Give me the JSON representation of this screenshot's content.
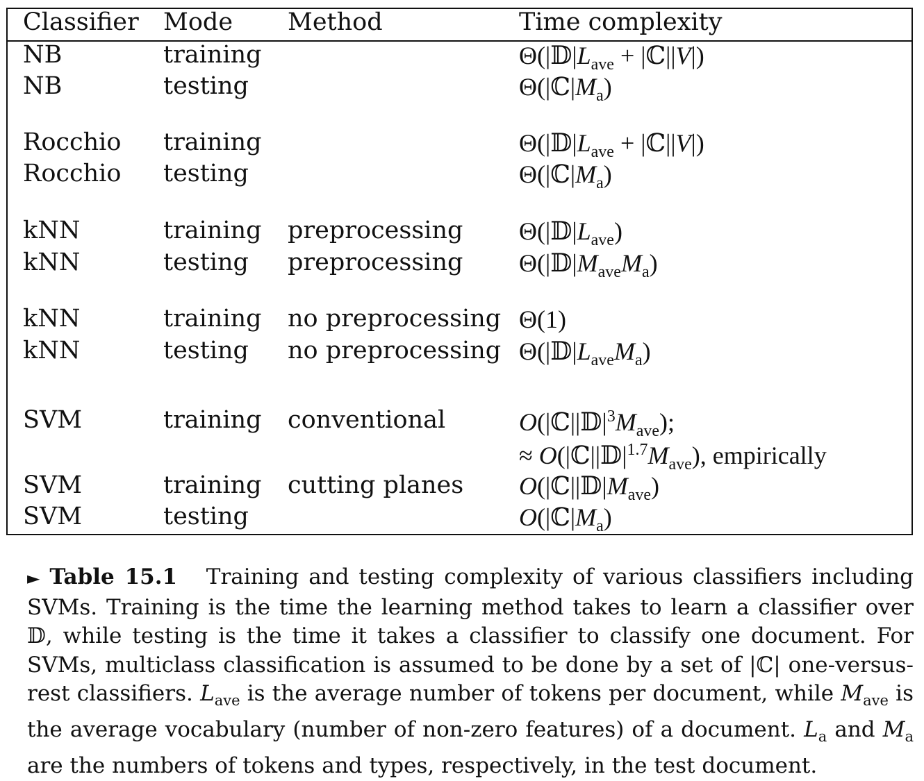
{
  "table": {
    "headers": [
      "Classifier",
      "Mode",
      "Method",
      "Time complexity"
    ],
    "rows": [
      {
        "classifier": "NB",
        "mode": "training",
        "method": "",
        "complexity": "Θ(|𝔻|L_ave + |ℂ||V|)"
      },
      {
        "classifier": "NB",
        "mode": "testing",
        "method": "",
        "complexity": "Θ(|ℂ|M_a)"
      },
      {
        "classifier": "Rocchio",
        "mode": "training",
        "method": "",
        "complexity": "Θ(|𝔻|L_ave + |ℂ||V|)"
      },
      {
        "classifier": "Rocchio",
        "mode": "testing",
        "method": "",
        "complexity": "Θ(|ℂ|M_a)"
      },
      {
        "classifier": "kNN",
        "mode": "training",
        "method": "preprocessing",
        "complexity": "Θ(|𝔻|L_ave)"
      },
      {
        "classifier": "kNN",
        "mode": "testing",
        "method": "preprocessing",
        "complexity": "Θ(|𝔻|M_ave M_a)"
      },
      {
        "classifier": "kNN",
        "mode": "training",
        "method": "no preprocessing",
        "complexity": "Θ(1)"
      },
      {
        "classifier": "kNN",
        "mode": "testing",
        "method": "no preprocessing",
        "complexity": "Θ(|𝔻|L_ave M_a)"
      },
      {
        "classifier": "SVM",
        "mode": "training",
        "method": "conventional",
        "complexity": "O(|ℂ||𝔻|^3 M_ave);",
        "complexity_line2": "≈ O(|ℂ||𝔻|^1.7 M_ave), empirically"
      },
      {
        "classifier": "SVM",
        "mode": "training",
        "method": "cutting planes",
        "complexity": "O(|ℂ||𝔻|M_ave)"
      },
      {
        "classifier": "SVM",
        "mode": "testing",
        "method": "",
        "complexity": "O(|ℂ|M_a)"
      }
    ]
  },
  "caption": {
    "marker": "►",
    "label": "Table 15.1",
    "p1": "Training and testing complexity of various classifiers including SVMs. Training is the time the learning method takes to learn a classifier over 𝔻, while testing is the time it takes a classifier to classify one document. For SVMs, multiclass classification is assumed to be done by a set of |ℂ| one-versus-rest classifiers.",
    "L": "L",
    "ave": "ave",
    "p2": "is the average number of tokens per document, while",
    "M": "M",
    "p3": "is the average vocabulary (number of non-zero features) of a document.",
    "a": "a",
    "and": "and",
    "p4": "are the numbers of tokens and types, respectively, in the test document."
  }
}
